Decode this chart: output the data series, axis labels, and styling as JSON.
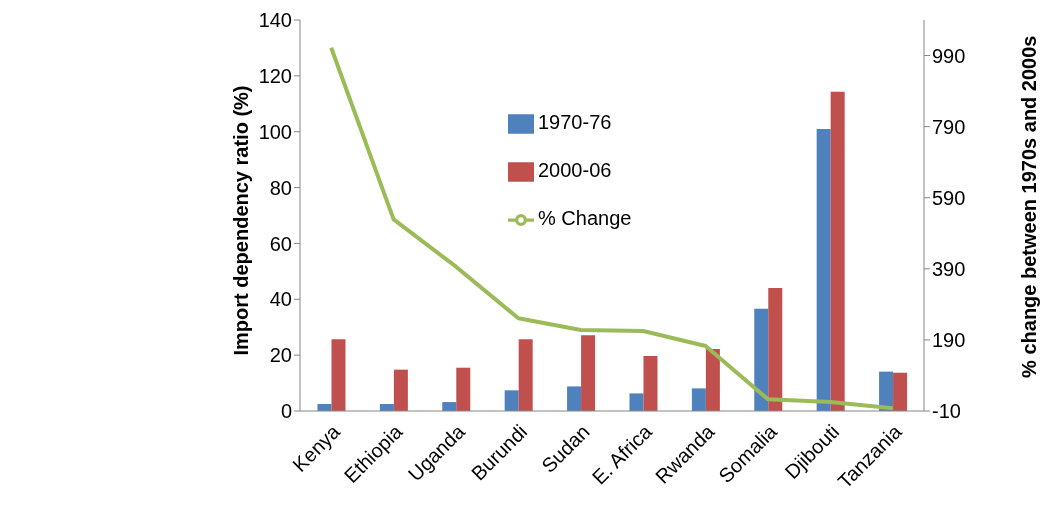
{
  "chart_data": {
    "type": "bar",
    "categories": [
      "Kenya",
      "Ethiopia",
      "Uganda",
      "Burundi",
      "Sudan",
      "E. Africa",
      "Rwanda",
      "Somalia",
      "Djibouti",
      "Tanzania"
    ],
    "series": [
      {
        "name": "1970-76",
        "color": "#4f81bd",
        "values": [
          2.5,
          2.5,
          3.2,
          7.4,
          8.8,
          6.3,
          8.1,
          36.6,
          101,
          14.1
        ]
      },
      {
        "name": "2000-06",
        "color": "#c0504d",
        "values": [
          25.7,
          14.8,
          15.5,
          25.7,
          27.1,
          19.7,
          22.2,
          44,
          114.3,
          13.7
        ]
      },
      {
        "name": "% Change",
        "type": "line",
        "axis": "y2",
        "color": "#9bbb59",
        "values": [
          1012,
          529,
          396,
          251,
          218,
          215,
          173,
          23,
          15,
          -2
        ]
      }
    ],
    "ylabel": "Import dependency ratio (%)",
    "y2label": "% change between 1970s and 2000s",
    "ylim": [
      0,
      140
    ],
    "yticks": [
      0,
      20,
      40,
      60,
      80,
      100,
      120,
      140
    ],
    "y2lim": [
      -10,
      1090
    ],
    "y2ticks": [
      -10,
      190,
      390,
      590,
      790,
      990
    ],
    "grid": false,
    "legend": "top left",
    "marker": "none",
    "line_style": "solid"
  }
}
